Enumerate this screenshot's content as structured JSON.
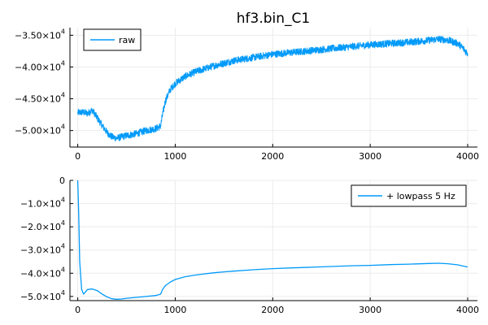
{
  "title": "hf3.bin_C1",
  "colors": {
    "series": "#009af9",
    "axis": "#000000",
    "grid": "#ebebeb"
  },
  "chart_data": [
    {
      "type": "line",
      "title": "hf3.bin_C1",
      "xlabel": "",
      "ylabel": "",
      "xlim": [
        -80,
        4100
      ],
      "ylim": [
        -52600,
        -33800
      ],
      "grid": true,
      "legend_position": "top-left",
      "x_ticks": [
        {
          "value": 0,
          "label": "0"
        },
        {
          "value": 1000,
          "label": "1000"
        },
        {
          "value": 2000,
          "label": "2000"
        },
        {
          "value": 3000,
          "label": "3000"
        },
        {
          "value": 4000,
          "label": "4000"
        }
      ],
      "y_ticks": [
        {
          "value": -35000,
          "mantissa": "−3.50×10",
          "exp": "4"
        },
        {
          "value": -40000,
          "mantissa": "−4.00×10",
          "exp": "4"
        },
        {
          "value": -45000,
          "mantissa": "−4.50×10",
          "exp": "4"
        },
        {
          "value": -50000,
          "mantissa": "−5.00×10",
          "exp": "4"
        }
      ],
      "series": [
        {
          "name": "raw",
          "noise": 550,
          "x": [
            0,
            50,
            100,
            150,
            200,
            250,
            300,
            350,
            400,
            450,
            500,
            600,
            700,
            800,
            850,
            870,
            900,
            950,
            1000,
            1100,
            1200,
            1300,
            1400,
            1500,
            1600,
            1800,
            2000,
            2200,
            2400,
            2600,
            2800,
            3000,
            3200,
            3400,
            3600,
            3700,
            3800,
            3900,
            3950,
            4000
          ],
          "y": [
            -47200,
            -47100,
            -47300,
            -46800,
            -48000,
            -49200,
            -50300,
            -51000,
            -51200,
            -51000,
            -50800,
            -50500,
            -50000,
            -49700,
            -49300,
            -47500,
            -45300,
            -43500,
            -42600,
            -41500,
            -40800,
            -40300,
            -39800,
            -39400,
            -39000,
            -38500,
            -38000,
            -37700,
            -37400,
            -37100,
            -36800,
            -36500,
            -36300,
            -36100,
            -35800,
            -35600,
            -35800,
            -36300,
            -37000,
            -37900
          ]
        }
      ]
    },
    {
      "type": "line",
      "title": "",
      "xlabel": "",
      "ylabel": "",
      "xlim": [
        -80,
        4100
      ],
      "ylim": [
        -51800,
        0
      ],
      "grid": true,
      "legend_position": "top-right",
      "x_ticks": [
        {
          "value": 0,
          "label": "0"
        },
        {
          "value": 1000,
          "label": "1000"
        },
        {
          "value": 2000,
          "label": "2000"
        },
        {
          "value": 3000,
          "label": "3000"
        },
        {
          "value": 4000,
          "label": "4000"
        }
      ],
      "y_ticks": [
        {
          "value": 0,
          "mantissa": "0",
          "exp": ""
        },
        {
          "value": -10000,
          "mantissa": "−1.0×10",
          "exp": "4"
        },
        {
          "value": -20000,
          "mantissa": "−2.0×10",
          "exp": "4"
        },
        {
          "value": -30000,
          "mantissa": "−3.0×10",
          "exp": "4"
        },
        {
          "value": -40000,
          "mantissa": "−4.0×10",
          "exp": "4"
        },
        {
          "value": -50000,
          "mantissa": "−5.0×10",
          "exp": "4"
        }
      ],
      "series": [
        {
          "name": "+ lowpass 5 Hz",
          "noise": 0,
          "x": [
            0,
            10,
            20,
            40,
            60,
            80,
            100,
            150,
            200,
            250,
            300,
            350,
            400,
            450,
            500,
            600,
            700,
            800,
            850,
            870,
            900,
            950,
            1000,
            1100,
            1200,
            1300,
            1400,
            1500,
            1600,
            1800,
            2000,
            2200,
            2400,
            2600,
            2800,
            3000,
            3200,
            3400,
            3600,
            3700,
            3800,
            3900,
            3950,
            4000
          ],
          "y": [
            0,
            -15000,
            -35000,
            -47000,
            -49000,
            -48000,
            -47000,
            -46800,
            -47500,
            -49000,
            -50200,
            -51000,
            -51200,
            -51100,
            -50800,
            -50400,
            -50000,
            -49600,
            -49000,
            -47000,
            -45300,
            -43800,
            -42700,
            -41500,
            -40800,
            -40300,
            -39800,
            -39400,
            -39100,
            -38500,
            -38000,
            -37700,
            -37400,
            -37100,
            -36800,
            -36600,
            -36300,
            -36100,
            -35800,
            -35700,
            -35900,
            -36400,
            -36900,
            -37300
          ]
        }
      ]
    }
  ]
}
